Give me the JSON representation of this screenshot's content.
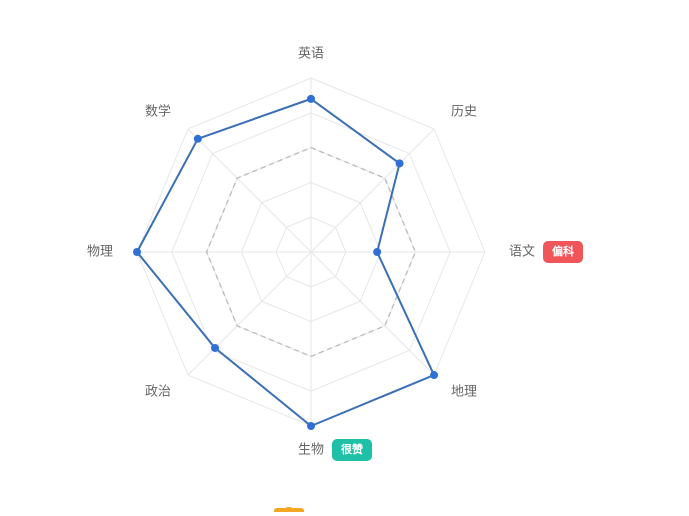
{
  "chart_data": {
    "type": "radar",
    "indicators": [
      {
        "name": "英语",
        "value": 88
      },
      {
        "name": "历史",
        "value": 72
      },
      {
        "name": "语文",
        "value": 38
      },
      {
        "name": "地理",
        "value": 100
      },
      {
        "name": "生物",
        "value": 100
      },
      {
        "name": "政治",
        "value": 78
      },
      {
        "name": "物理",
        "value": 100
      },
      {
        "name": "数学",
        "value": 92
      }
    ],
    "max": 100,
    "split_number": 5,
    "reference_value": 60,
    "series_color": "#3a6fb5",
    "point_color": "#2f6fd6",
    "grid_color": "#e6e6e6",
    "reference_color": "#bdbdbd",
    "badges": [
      {
        "indicator": "语文",
        "text": "偏科",
        "color": "#f0555a"
      },
      {
        "indicator": "生物",
        "text": "很赞",
        "color": "#1fc0a8"
      }
    ],
    "bottom_icon_color": "#f5a623"
  }
}
